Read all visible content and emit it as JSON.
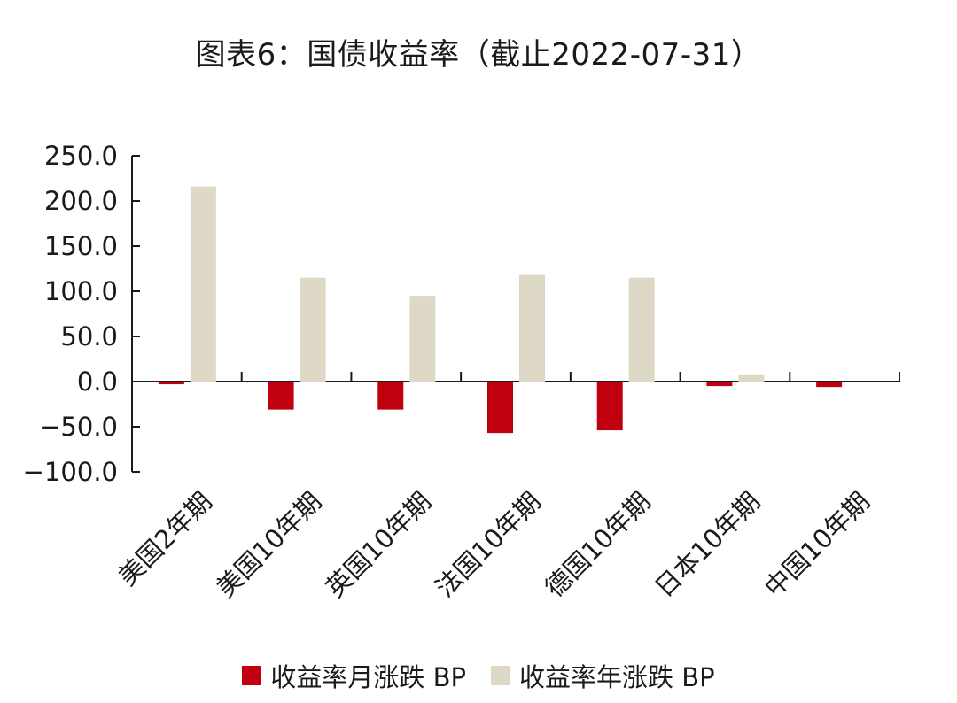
{
  "chart_data": {
    "type": "bar",
    "title": "图表6：国债收益率（截止2022-07-31）",
    "categories": [
      "美国2年期",
      "美国10年期",
      "英国10年期",
      "法国10年期",
      "德国10年期",
      "日本10年期",
      "中国10年期"
    ],
    "series": [
      {
        "name": "收益率月涨跌 BP",
        "color": "#c0000f",
        "values": [
          -3,
          -31,
          -31,
          -57,
          -54,
          -5,
          -6
        ]
      },
      {
        "name": "收益率年涨跌 BP",
        "color": "#ddd9c6",
        "values": [
          216,
          115,
          95,
          118,
          115,
          8,
          0
        ]
      }
    ],
    "ylim": [
      -100,
      250
    ],
    "yticks": [
      "250.0",
      "200.0",
      "150.0",
      "100.0",
      "50.0",
      "0.0",
      "−50.0",
      "−100.0"
    ],
    "ytick_values": [
      250,
      200,
      150,
      100,
      50,
      0,
      -50,
      -100
    ],
    "xlabel": "",
    "ylabel": "",
    "legend_position": "bottom",
    "grid": false
  }
}
